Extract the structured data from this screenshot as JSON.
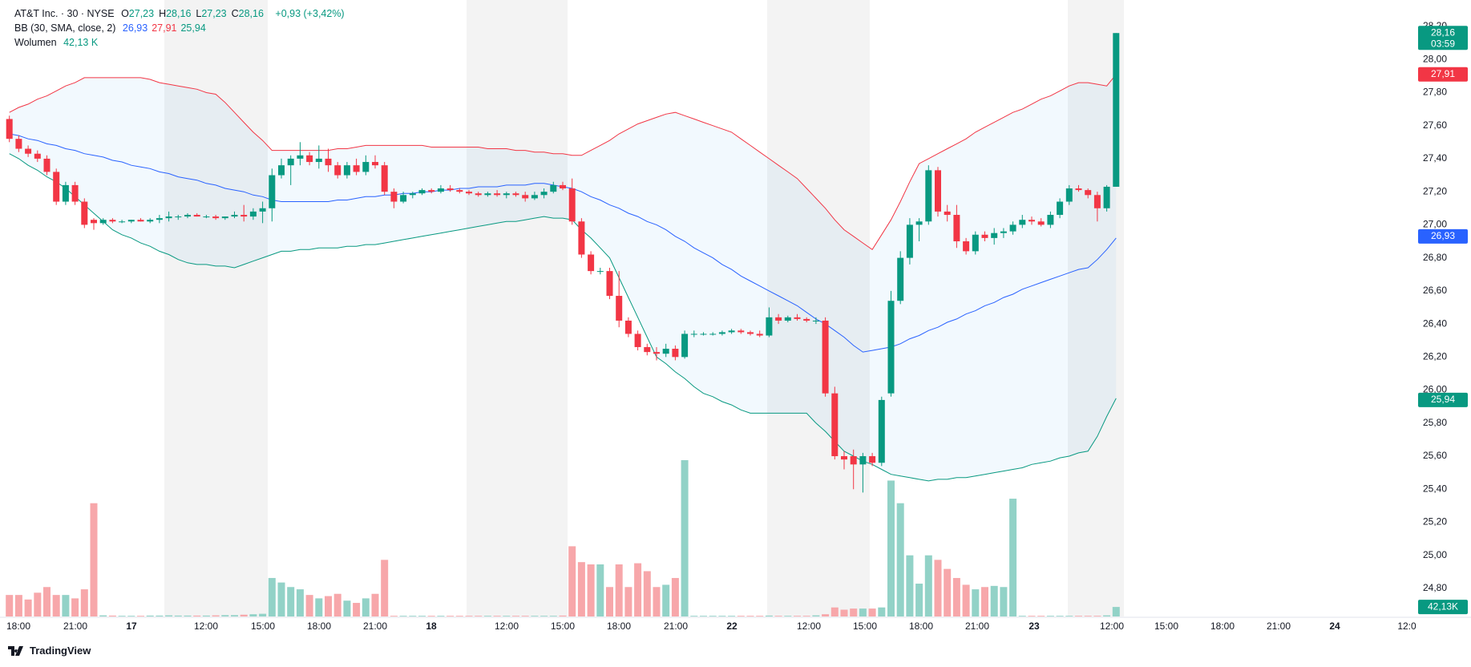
{
  "chart_data": {
    "type": "candlestick",
    "legend": {
      "symbol": "AT&T Inc. · 30 · NYSE",
      "ohlc": [
        {
          "label": "O",
          "value": "27,23"
        },
        {
          "label": "H",
          "value": "28,16"
        },
        {
          "label": "L",
          "value": "27,23"
        },
        {
          "label": "C",
          "value": "28,16"
        }
      ],
      "change": "+0,93 (+3,42%)",
      "indicator": "BB (30, SMA, close, 2)",
      "indicator_values": [
        "26,93",
        "27,91",
        "25,94"
      ],
      "volume_label": "Wolumen",
      "volume_value": "42,13 K"
    },
    "up_color": "#089981",
    "down_color": "#f23645",
    "volume_up_color": "#92d2c7",
    "volume_down_color": "#f7a7aa",
    "ohlc": [
      [
        27.64,
        27.66,
        27.5,
        27.52
      ],
      [
        27.52,
        27.54,
        27.44,
        27.46
      ],
      [
        27.46,
        27.48,
        27.41,
        27.43
      ],
      [
        27.43,
        27.45,
        27.38,
        27.4
      ],
      [
        27.4,
        27.42,
        27.3,
        27.32
      ],
      [
        27.32,
        27.34,
        27.12,
        27.14
      ],
      [
        27.14,
        27.26,
        27.12,
        27.24
      ],
      [
        27.24,
        27.26,
        27.12,
        27.14
      ],
      [
        27.14,
        27.16,
        26.98,
        27.0
      ],
      [
        27.03,
        27.04,
        26.97,
        27.01
      ],
      [
        27.01,
        27.04,
        27.0,
        27.03
      ],
      [
        27.03,
        27.04,
        27.01,
        27.02
      ],
      [
        27.02,
        27.03,
        27.01,
        27.02
      ],
      [
        27.02,
        27.03,
        27.01,
        27.03
      ],
      [
        27.03,
        27.04,
        27.02,
        27.02
      ],
      [
        27.02,
        27.04,
        27.01,
        27.03
      ],
      [
        27.03,
        27.06,
        27.01,
        27.04
      ],
      [
        27.04,
        27.08,
        27.02,
        27.05
      ],
      [
        27.05,
        27.06,
        27.03,
        27.05
      ],
      [
        27.05,
        27.07,
        27.04,
        27.06
      ],
      [
        27.06,
        27.07,
        27.05,
        27.05
      ],
      [
        27.05,
        27.06,
        27.04,
        27.05
      ],
      [
        27.05,
        27.06,
        27.03,
        27.04
      ],
      [
        27.04,
        27.05,
        27.03,
        27.05
      ],
      [
        27.05,
        27.08,
        27.04,
        27.06
      ],
      [
        27.06,
        27.12,
        27.02,
        27.05
      ],
      [
        27.05,
        27.1,
        27.03,
        27.08
      ],
      [
        27.08,
        27.14,
        27.01,
        27.1
      ],
      [
        27.1,
        27.34,
        27.02,
        27.3
      ],
      [
        27.3,
        27.4,
        27.28,
        27.36
      ],
      [
        27.36,
        27.42,
        27.24,
        27.4
      ],
      [
        27.4,
        27.5,
        27.36,
        27.42
      ],
      [
        27.42,
        27.44,
        27.36,
        27.38
      ],
      [
        27.38,
        27.48,
        27.34,
        27.4
      ],
      [
        27.4,
        27.46,
        27.32,
        27.36
      ],
      [
        27.36,
        27.38,
        27.28,
        27.3
      ],
      [
        27.3,
        27.38,
        27.28,
        27.36
      ],
      [
        27.36,
        27.4,
        27.3,
        27.32
      ],
      [
        27.32,
        27.42,
        27.3,
        27.38
      ],
      [
        27.38,
        27.42,
        27.34,
        27.36
      ],
      [
        27.36,
        27.38,
        27.18,
        27.2
      ],
      [
        27.2,
        27.22,
        27.1,
        27.14
      ],
      [
        27.14,
        27.2,
        27.13,
        27.18
      ],
      [
        27.18,
        27.2,
        27.16,
        27.19
      ],
      [
        27.19,
        27.22,
        27.18,
        27.21
      ],
      [
        27.21,
        27.22,
        27.19,
        27.2
      ],
      [
        27.2,
        27.24,
        27.19,
        27.22
      ],
      [
        27.22,
        27.24,
        27.2,
        27.21
      ],
      [
        27.21,
        27.22,
        27.19,
        27.2
      ],
      [
        27.2,
        27.21,
        27.18,
        27.19
      ],
      [
        27.19,
        27.2,
        27.17,
        27.18
      ],
      [
        27.18,
        27.2,
        27.17,
        27.19
      ],
      [
        27.19,
        27.21,
        27.17,
        27.18
      ],
      [
        27.18,
        27.2,
        27.16,
        27.19
      ],
      [
        27.19,
        27.2,
        27.17,
        27.18
      ],
      [
        27.18,
        27.2,
        27.14,
        27.16
      ],
      [
        27.16,
        27.2,
        27.15,
        27.18
      ],
      [
        27.18,
        27.22,
        27.16,
        27.2
      ],
      [
        27.2,
        27.26,
        27.19,
        27.24
      ],
      [
        27.24,
        27.26,
        27.21,
        27.22
      ],
      [
        27.22,
        27.28,
        27.0,
        27.02
      ],
      [
        27.02,
        27.04,
        26.8,
        26.82
      ],
      [
        26.82,
        26.84,
        26.7,
        26.72
      ],
      [
        26.72,
        26.74,
        26.7,
        26.72
      ],
      [
        26.72,
        26.74,
        26.55,
        26.57
      ],
      [
        26.57,
        26.72,
        26.38,
        26.42
      ],
      [
        26.42,
        26.44,
        26.32,
        26.34
      ],
      [
        26.34,
        26.36,
        26.24,
        26.26
      ],
      [
        26.26,
        26.28,
        26.21,
        26.23
      ],
      [
        26.23,
        26.26,
        26.18,
        26.22
      ],
      [
        26.22,
        26.28,
        26.2,
        26.25
      ],
      [
        26.25,
        26.27,
        26.18,
        26.2
      ],
      [
        26.2,
        26.36,
        26.19,
        26.34
      ],
      [
        26.34,
        26.36,
        26.32,
        26.34
      ],
      [
        26.34,
        26.35,
        26.33,
        26.34
      ],
      [
        26.34,
        26.35,
        26.33,
        26.34
      ],
      [
        26.34,
        26.36,
        26.33,
        26.35
      ],
      [
        26.35,
        26.37,
        26.34,
        26.36
      ],
      [
        26.36,
        26.37,
        26.34,
        26.35
      ],
      [
        26.35,
        26.36,
        26.33,
        26.34
      ],
      [
        26.34,
        26.36,
        26.32,
        26.33
      ],
      [
        26.33,
        26.5,
        26.32,
        26.44
      ],
      [
        26.44,
        26.46,
        26.4,
        26.42
      ],
      [
        26.42,
        26.45,
        26.41,
        26.44
      ],
      [
        26.44,
        26.46,
        26.42,
        26.43
      ],
      [
        26.43,
        26.44,
        26.41,
        26.42
      ],
      [
        26.42,
        26.44,
        26.4,
        26.42
      ],
      [
        26.42,
        26.44,
        25.96,
        25.98
      ],
      [
        25.98,
        26.02,
        25.58,
        25.6
      ],
      [
        25.6,
        25.63,
        25.52,
        25.58
      ],
      [
        25.6,
        25.64,
        25.4,
        25.55
      ],
      [
        25.55,
        25.62,
        25.38,
        25.6
      ],
      [
        25.6,
        25.62,
        25.54,
        25.56
      ],
      [
        25.56,
        25.96,
        25.54,
        25.94
      ],
      [
        25.98,
        26.6,
        25.96,
        26.54
      ],
      [
        26.54,
        26.84,
        26.52,
        26.8
      ],
      [
        26.8,
        27.04,
        26.76,
        27.0
      ],
      [
        27.0,
        27.04,
        26.9,
        27.02
      ],
      [
        27.02,
        27.36,
        27.0,
        27.33
      ],
      [
        27.33,
        27.35,
        27.05,
        27.08
      ],
      [
        27.08,
        27.12,
        27.02,
        27.06
      ],
      [
        27.06,
        27.12,
        26.86,
        26.9
      ],
      [
        26.9,
        26.92,
        26.82,
        26.84
      ],
      [
        26.84,
        26.96,
        26.82,
        26.94
      ],
      [
        26.94,
        26.96,
        26.9,
        26.92
      ],
      [
        26.92,
        26.98,
        26.88,
        26.95
      ],
      [
        26.95,
        26.98,
        26.92,
        26.96
      ],
      [
        26.96,
        27.02,
        26.94,
        27.0
      ],
      [
        27.0,
        27.06,
        26.98,
        27.03
      ],
      [
        27.03,
        27.05,
        27.0,
        27.02
      ],
      [
        27.02,
        27.04,
        26.99,
        27.0
      ],
      [
        27.0,
        27.08,
        26.98,
        27.06
      ],
      [
        27.06,
        27.16,
        27.04,
        27.14
      ],
      [
        27.14,
        27.24,
        27.12,
        27.22
      ],
      [
        27.22,
        27.24,
        27.2,
        27.21
      ],
      [
        27.21,
        27.22,
        27.16,
        27.18
      ],
      [
        27.18,
        27.2,
        27.02,
        27.1
      ],
      [
        27.1,
        27.24,
        27.08,
        27.23
      ],
      [
        27.23,
        28.16,
        27.23,
        28.16
      ]
    ],
    "volume": [
      95,
      95,
      75,
      105,
      130,
      95,
      95,
      80,
      120,
      500,
      5,
      4,
      3,
      3,
      3,
      4,
      4,
      5,
      4,
      4,
      4,
      4,
      5,
      6,
      6,
      8,
      10,
      12,
      170,
      150,
      130,
      120,
      95,
      80,
      90,
      100,
      70,
      60,
      80,
      100,
      250,
      3,
      3,
      3,
      3,
      3,
      3,
      3,
      3,
      3,
      3,
      3,
      3,
      3,
      3,
      3,
      3,
      3,
      3,
      4,
      310,
      240,
      230,
      230,
      130,
      230,
      130,
      235,
      200,
      130,
      140,
      170,
      690,
      3,
      3,
      3,
      3,
      3,
      3,
      3,
      3,
      4,
      3,
      3,
      3,
      3,
      5,
      10,
      40,
      30,
      35,
      35,
      35,
      40,
      600,
      500,
      270,
      145,
      270,
      250,
      210,
      170,
      140,
      120,
      130,
      135,
      130,
      520,
      3,
      3,
      3,
      3,
      3,
      3,
      3,
      3,
      3,
      5,
      42.13
    ],
    "bands": {
      "upper": {
        "color": "#f23645",
        "values": [
          27.68,
          27.71,
          27.73,
          27.76,
          27.78,
          27.81,
          27.84,
          27.86,
          27.89,
          27.89,
          27.89,
          27.89,
          27.89,
          27.89,
          27.89,
          27.88,
          27.86,
          27.85,
          27.84,
          27.83,
          27.82,
          27.8,
          27.79,
          27.74,
          27.68,
          27.62,
          27.56,
          27.51,
          27.45,
          27.45,
          27.45,
          27.45,
          27.45,
          27.45,
          27.45,
          27.46,
          27.46,
          27.47,
          27.48,
          27.48,
          27.48,
          27.48,
          27.48,
          27.48,
          27.48,
          27.47,
          27.47,
          27.47,
          27.47,
          27.47,
          27.47,
          27.46,
          27.46,
          27.46,
          27.45,
          27.45,
          27.44,
          27.44,
          27.43,
          27.43,
          27.42,
          27.42,
          27.45,
          27.48,
          27.51,
          27.55,
          27.58,
          27.61,
          27.63,
          27.65,
          27.67,
          27.68,
          27.66,
          27.64,
          27.62,
          27.6,
          27.58,
          27.56,
          27.52,
          27.48,
          27.44,
          27.4,
          27.36,
          27.32,
          27.28,
          27.22,
          27.16,
          27.1,
          27.03,
          26.97,
          26.93,
          26.89,
          26.85,
          26.94,
          27.03,
          27.14,
          27.26,
          27.37,
          27.4,
          27.43,
          27.46,
          27.49,
          27.52,
          27.56,
          27.59,
          27.62,
          27.65,
          27.68,
          27.7,
          27.73,
          27.76,
          27.78,
          27.81,
          27.84,
          27.86,
          27.86,
          27.85,
          27.84,
          27.91
        ]
      },
      "basis": {
        "color": "#2962ff",
        "values": [
          27.55,
          27.54,
          27.52,
          27.51,
          27.49,
          27.48,
          27.46,
          27.45,
          27.43,
          27.42,
          27.41,
          27.39,
          27.38,
          27.36,
          27.35,
          27.34,
          27.32,
          27.31,
          27.29,
          27.28,
          27.27,
          27.25,
          27.24,
          27.22,
          27.21,
          27.2,
          27.18,
          27.17,
          27.15,
          27.14,
          27.14,
          27.14,
          27.14,
          27.14,
          27.14,
          27.15,
          27.15,
          27.16,
          27.17,
          27.17,
          27.18,
          27.18,
          27.19,
          27.19,
          27.2,
          27.2,
          27.21,
          27.21,
          27.22,
          27.22,
          27.23,
          27.23,
          27.23,
          27.24,
          27.24,
          27.24,
          27.25,
          27.25,
          27.24,
          27.23,
          27.22,
          27.2,
          27.17,
          27.15,
          27.12,
          27.1,
          27.07,
          27.05,
          27.02,
          27.0,
          26.97,
          26.93,
          26.9,
          26.86,
          26.83,
          26.8,
          26.76,
          26.73,
          26.69,
          26.66,
          26.63,
          26.6,
          26.57,
          26.54,
          26.51,
          26.47,
          26.43,
          26.4,
          26.36,
          26.32,
          26.27,
          26.23,
          26.24,
          26.25,
          26.26,
          26.28,
          26.31,
          26.33,
          26.36,
          26.38,
          26.41,
          26.43,
          26.46,
          26.48,
          26.51,
          26.53,
          26.56,
          26.58,
          26.61,
          26.63,
          26.65,
          26.67,
          26.69,
          26.71,
          26.73,
          26.74,
          26.79,
          26.85,
          26.92
        ]
      },
      "lower": {
        "color": "#089981",
        "values": [
          27.43,
          27.4,
          27.36,
          27.33,
          27.29,
          27.26,
          27.22,
          27.17,
          27.12,
          27.07,
          27.02,
          26.97,
          26.94,
          26.92,
          26.89,
          26.87,
          26.84,
          26.82,
          26.79,
          26.77,
          26.76,
          26.76,
          26.75,
          26.75,
          26.74,
          26.76,
          26.78,
          26.8,
          26.82,
          26.84,
          26.84,
          26.85,
          26.85,
          26.86,
          26.86,
          26.86,
          26.87,
          26.87,
          26.88,
          26.88,
          26.89,
          26.9,
          26.91,
          26.92,
          26.93,
          26.94,
          26.95,
          26.96,
          26.97,
          26.98,
          26.99,
          27.0,
          27.01,
          27.02,
          27.02,
          27.03,
          27.04,
          27.05,
          27.04,
          27.04,
          27.03,
          26.97,
          26.92,
          26.86,
          26.8,
          26.68,
          26.56,
          26.44,
          26.32,
          26.2,
          26.16,
          26.11,
          26.07,
          26.02,
          25.98,
          25.96,
          25.93,
          25.91,
          25.88,
          25.86,
          25.86,
          25.86,
          25.86,
          25.86,
          25.86,
          25.86,
          25.8,
          25.75,
          25.69,
          25.63,
          25.6,
          25.57,
          25.55,
          25.52,
          25.49,
          25.48,
          25.47,
          25.46,
          25.45,
          25.46,
          25.46,
          25.47,
          25.47,
          25.48,
          25.49,
          25.5,
          25.51,
          25.52,
          25.53,
          25.55,
          25.56,
          25.57,
          25.59,
          25.6,
          25.62,
          25.63,
          25.72,
          25.84,
          25.95
        ]
      }
    },
    "ylim": [
      24.63,
      28.36
    ],
    "yticks": [
      {
        "value": 24.8,
        "label": "24,80"
      },
      {
        "value": 25.0,
        "label": "25,00"
      },
      {
        "value": 25.2,
        "label": "25,20"
      },
      {
        "value": 25.4,
        "label": "25,40"
      },
      {
        "value": 25.6,
        "label": "25,60"
      },
      {
        "value": 25.8,
        "label": "25,80"
      },
      {
        "value": 26.0,
        "label": "26,00"
      },
      {
        "value": 26.2,
        "label": "26,20"
      },
      {
        "value": 26.4,
        "label": "26,40"
      },
      {
        "value": 26.6,
        "label": "26,60"
      },
      {
        "value": 26.8,
        "label": "26,80"
      },
      {
        "value": 27.0,
        "label": "27,00"
      },
      {
        "value": 27.2,
        "label": "27,20"
      },
      {
        "value": 27.4,
        "label": "27,40"
      },
      {
        "value": 27.6,
        "label": "27,60"
      },
      {
        "value": 27.8,
        "label": "27,80"
      },
      {
        "value": 28.0,
        "label": "28,00"
      },
      {
        "value": 28.2,
        "label": "28,20"
      }
    ],
    "grid": false,
    "x_labels": [
      "18:00",
      "21:00",
      "17",
      "12:00",
      "15:00",
      "18:00",
      "21:00",
      "18",
      "12:00",
      "15:00",
      "18:00",
      "21:00",
      "22",
      "12:00",
      "15:00",
      "18:00",
      "21:00",
      "23",
      "12:00",
      "15:00",
      "18:00",
      "21:00",
      "24",
      "12:0"
    ],
    "price_badges": [
      {
        "value": 28.16,
        "label": "28,16",
        "sub": "03:59",
        "color": "#089981"
      },
      {
        "value": 27.91,
        "label": "27,91",
        "color": "#f23645"
      },
      {
        "value": 26.93,
        "label": "26,93",
        "color": "#2962ff"
      },
      {
        "value": 25.94,
        "label": "25,94",
        "color": "#089981"
      }
    ],
    "volume_badge": {
      "value": 42.13,
      "label": "42,13K",
      "color": "#089981"
    }
  },
  "brand": "TradingView"
}
